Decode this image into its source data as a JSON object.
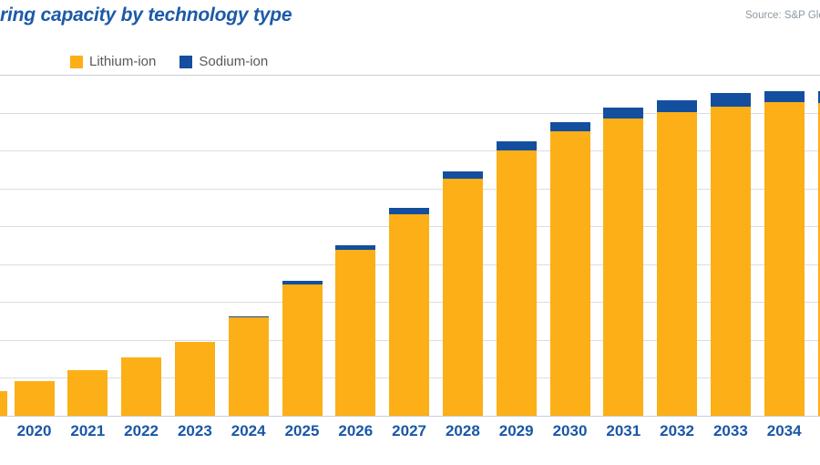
{
  "header": {
    "title": "ring capacity by technology type",
    "title_note": "left edge of title cropped out of frame",
    "source": "Source: S&P Global"
  },
  "legend": {
    "items": [
      {
        "label": "Lithium-ion",
        "color": "#FCAF17"
      },
      {
        "label": "Sodium-ion",
        "color": "#134F9E"
      }
    ]
  },
  "colors": {
    "lithium": "#FCAF17",
    "sodium": "#134F9E",
    "title_text": "#1C5AA8",
    "axis_label_text": "#1A57A7",
    "legend_text": "#55595C",
    "source_text": "#8D99A2",
    "gridline": "#DADDE0",
    "plot_border": "#C7CDD2"
  },
  "chart_data": {
    "type": "bar",
    "stacked": true,
    "title": "ring capacity by technology type",
    "xlabel": "",
    "ylabel": "",
    "units": "relative gridline units (y-axis tick labels cropped out of frame)",
    "ylim": [
      0,
      9
    ],
    "grid": true,
    "legend_position": "top-left",
    "edge_bars_clipped": true,
    "categories": [
      "",
      "2020",
      "2021",
      "2022",
      "2023",
      "2024",
      "2025",
      "2026",
      "2027",
      "2028",
      "2029",
      "2030",
      "2031",
      "2032",
      "2033",
      "2034",
      ""
    ],
    "series": [
      {
        "name": "Lithium-ion",
        "values": [
          0.65,
          0.91,
          1.2,
          1.54,
          1.95,
          2.59,
          3.46,
          4.38,
          5.31,
          6.25,
          7.0,
          7.5,
          7.84,
          8.01,
          8.17,
          8.27,
          8.25
        ]
      },
      {
        "name": "Sodium-ion",
        "values": [
          0,
          0,
          0,
          0,
          0,
          0.03,
          0.1,
          0.12,
          0.17,
          0.19,
          0.24,
          0.26,
          0.29,
          0.31,
          0.34,
          0.31,
          0.31
        ]
      }
    ]
  }
}
